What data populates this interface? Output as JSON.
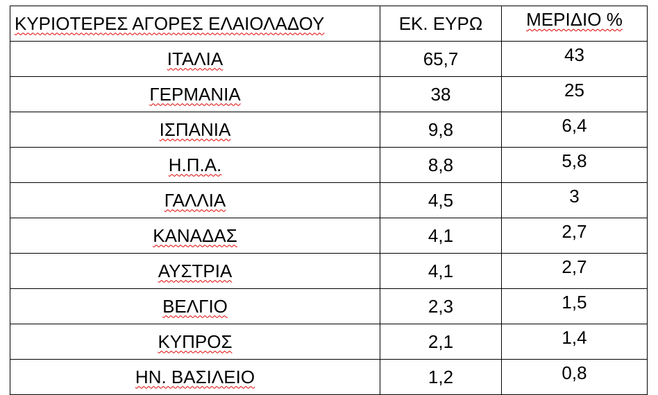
{
  "table": {
    "header": [
      "ΚΥΡΙΟΤΕΡΕΣ ΑΓΟΡΕΣ ΕΛΑΙΟΛΑΔΟΥ",
      "ΕΚ. ΕΥΡΩ",
      "ΜΕΡΙΔΙΟ %"
    ],
    "rows": [
      [
        "ΙΤΑΛΙΑ",
        "65,7",
        "43"
      ],
      [
        "ΓΕΡΜΑΝΙΑ",
        "38",
        "25"
      ],
      [
        "ΙΣΠΑΝΙΑ",
        "9,8",
        "6,4"
      ],
      [
        "Η.Π.Α.",
        "8,8",
        "5,8"
      ],
      [
        "ΓΑΛΛΙΑ",
        "4,5",
        "3"
      ],
      [
        "ΚΑΝΑΔΑΣ",
        "4,1",
        "2,7"
      ],
      [
        "ΑΥΣΤΡΙΑ",
        "4,1",
        "2,7"
      ],
      [
        "ΒΕΛΓΙΟ",
        "2,3",
        "1,5"
      ],
      [
        "ΚΥΠΡΟΣ",
        "2,1",
        "1,4"
      ],
      [
        "ΗΝ. ΒΑΣΙΛΕΙΟ",
        "1,2",
        "0,8"
      ]
    ]
  }
}
